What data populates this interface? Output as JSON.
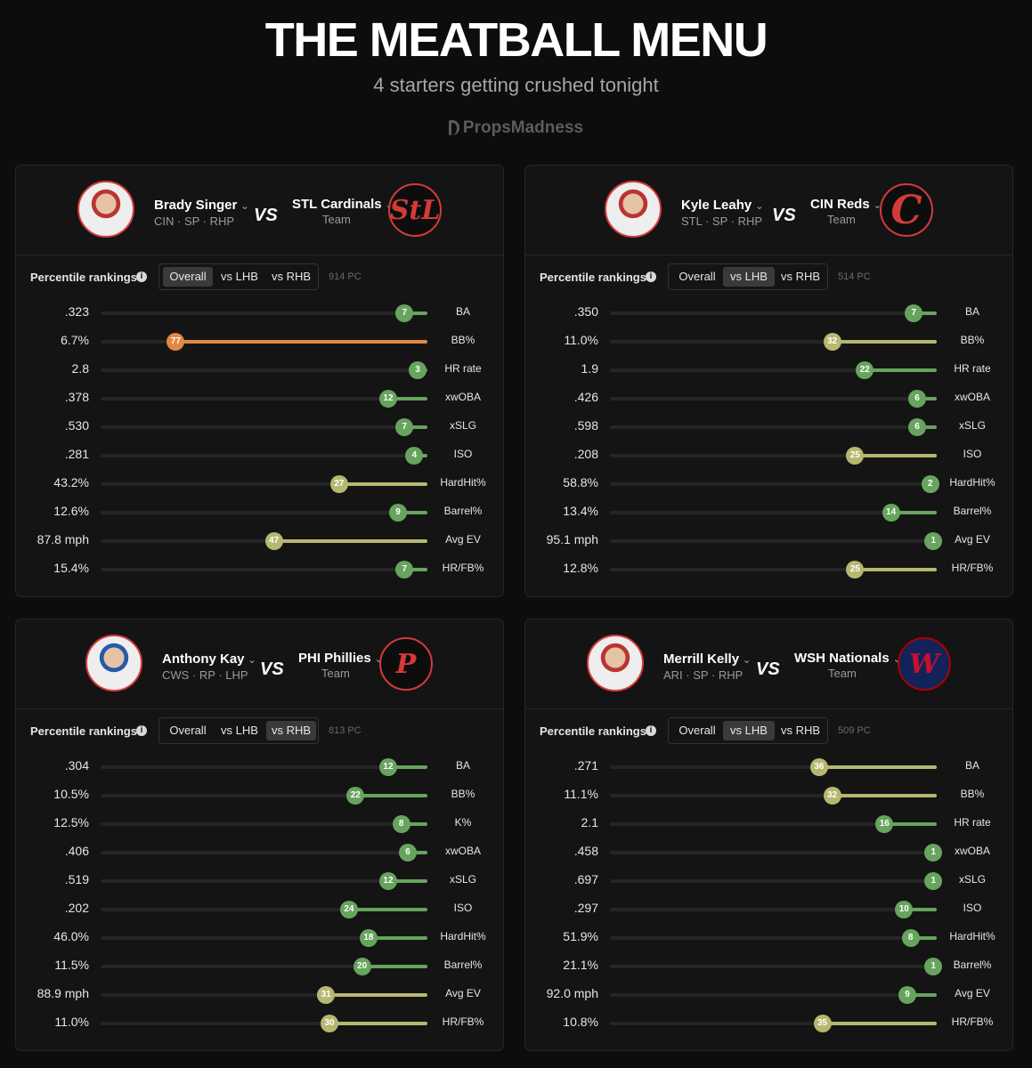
{
  "header": {
    "title": "THE MEATBALL MENU",
    "subtitle": "4 starters getting crushed tonight",
    "brand": "PropsMadness"
  },
  "colors": {
    "green": "#67a45e",
    "khaki": "#b6b871",
    "orange": "#e38844",
    "background": "#0d0d0d",
    "card": "#141414"
  },
  "cards": [
    {
      "player": {
        "name": "Brady Singer",
        "meta": "CIN · SP · RHP",
        "avatar": "player-headshot-reds"
      },
      "vs_label": "VS",
      "team": {
        "name": "STL Cardinals",
        "sub": "Team",
        "logo": "stl-cardinals-logo",
        "logo_text": "StL"
      },
      "percentile_label": "Percentile rankings",
      "tabs": [
        "Overall",
        "vs LHB",
        "vs RHB"
      ],
      "active_tab": 0,
      "pc_count": "914 PC",
      "stats": [
        {
          "value": ".323",
          "percentile": 7,
          "label": "BA"
        },
        {
          "value": "6.7%",
          "percentile": 77,
          "label": "BB%"
        },
        {
          "value": "2.8",
          "percentile": 3,
          "label": "HR rate"
        },
        {
          "value": ".378",
          "percentile": 12,
          "label": "xwOBA"
        },
        {
          "value": ".530",
          "percentile": 7,
          "label": "xSLG"
        },
        {
          "value": ".281",
          "percentile": 4,
          "label": "ISO"
        },
        {
          "value": "43.2%",
          "percentile": 27,
          "label": "HardHit%"
        },
        {
          "value": "12.6%",
          "percentile": 9,
          "label": "Barrel%"
        },
        {
          "value": "87.8 mph",
          "percentile": 47,
          "label": "Avg EV"
        },
        {
          "value": "15.4%",
          "percentile": 7,
          "label": "HR/FB%"
        }
      ]
    },
    {
      "player": {
        "name": "Kyle Leahy",
        "meta": "STL · SP · RHP",
        "avatar": "player-headshot-cardinals"
      },
      "vs_label": "VS",
      "team": {
        "name": "CIN Reds",
        "sub": "Team",
        "logo": "cin-reds-logo",
        "logo_text": "C"
      },
      "percentile_label": "Percentile rankings",
      "tabs": [
        "Overall",
        "vs LHB",
        "vs RHB"
      ],
      "active_tab": 1,
      "pc_count": "514 PC",
      "stats": [
        {
          "value": ".350",
          "percentile": 7,
          "label": "BA"
        },
        {
          "value": "11.0%",
          "percentile": 32,
          "label": "BB%"
        },
        {
          "value": "1.9",
          "percentile": 22,
          "label": "HR rate"
        },
        {
          "value": ".426",
          "percentile": 6,
          "label": "xwOBA"
        },
        {
          "value": ".598",
          "percentile": 6,
          "label": "xSLG"
        },
        {
          "value": ".208",
          "percentile": 25,
          "label": "ISO"
        },
        {
          "value": "58.8%",
          "percentile": 2,
          "label": "HardHit%"
        },
        {
          "value": "13.4%",
          "percentile": 14,
          "label": "Barrel%"
        },
        {
          "value": "95.1 mph",
          "percentile": 1,
          "label": "Avg EV"
        },
        {
          "value": "12.8%",
          "percentile": 25,
          "label": "HR/FB%"
        }
      ]
    },
    {
      "player": {
        "name": "Anthony Kay",
        "meta": "CWS · RP · LHP",
        "avatar": "player-headshot-cubs"
      },
      "vs_label": "VS",
      "team": {
        "name": "PHI Phillies",
        "sub": "Team",
        "logo": "phi-phillies-logo",
        "logo_text": "P"
      },
      "percentile_label": "Percentile rankings",
      "tabs": [
        "Overall",
        "vs LHB",
        "vs RHB"
      ],
      "active_tab": 2,
      "pc_count": "813 PC",
      "stats": [
        {
          "value": ".304",
          "percentile": 12,
          "label": "BA"
        },
        {
          "value": "10.5%",
          "percentile": 22,
          "label": "BB%"
        },
        {
          "value": "12.5%",
          "percentile": 8,
          "label": "K%"
        },
        {
          "value": ".406",
          "percentile": 6,
          "label": "xwOBA"
        },
        {
          "value": ".519",
          "percentile": 12,
          "label": "xSLG"
        },
        {
          "value": ".202",
          "percentile": 24,
          "label": "ISO"
        },
        {
          "value": "46.0%",
          "percentile": 18,
          "label": "HardHit%"
        },
        {
          "value": "11.5%",
          "percentile": 20,
          "label": "Barrel%"
        },
        {
          "value": "88.9 mph",
          "percentile": 31,
          "label": "Avg EV"
        },
        {
          "value": "11.0%",
          "percentile": 30,
          "label": "HR/FB%"
        }
      ]
    },
    {
      "player": {
        "name": "Merrill Kelly",
        "meta": "ARI · SP · RHP",
        "avatar": "player-headshot-dbacks"
      },
      "vs_label": "VS",
      "team": {
        "name": "WSH Nationals",
        "sub": "Team",
        "logo": "wsh-nationals-logo",
        "logo_text": "W"
      },
      "percentile_label": "Percentile rankings",
      "tabs": [
        "Overall",
        "vs LHB",
        "vs RHB"
      ],
      "active_tab": 1,
      "pc_count": "509 PC",
      "stats": [
        {
          "value": ".271",
          "percentile": 36,
          "label": "BA"
        },
        {
          "value": "11.1%",
          "percentile": 32,
          "label": "BB%"
        },
        {
          "value": "2.1",
          "percentile": 16,
          "label": "HR rate"
        },
        {
          "value": ".458",
          "percentile": 1,
          "label": "xwOBA"
        },
        {
          "value": ".697",
          "percentile": 1,
          "label": "xSLG"
        },
        {
          "value": ".297",
          "percentile": 10,
          "label": "ISO"
        },
        {
          "value": "51.9%",
          "percentile": 8,
          "label": "HardHit%"
        },
        {
          "value": "21.1%",
          "percentile": 1,
          "label": "Barrel%"
        },
        {
          "value": "92.0 mph",
          "percentile": 9,
          "label": "Avg EV"
        },
        {
          "value": "10.8%",
          "percentile": 35,
          "label": "HR/FB%"
        }
      ]
    }
  ]
}
